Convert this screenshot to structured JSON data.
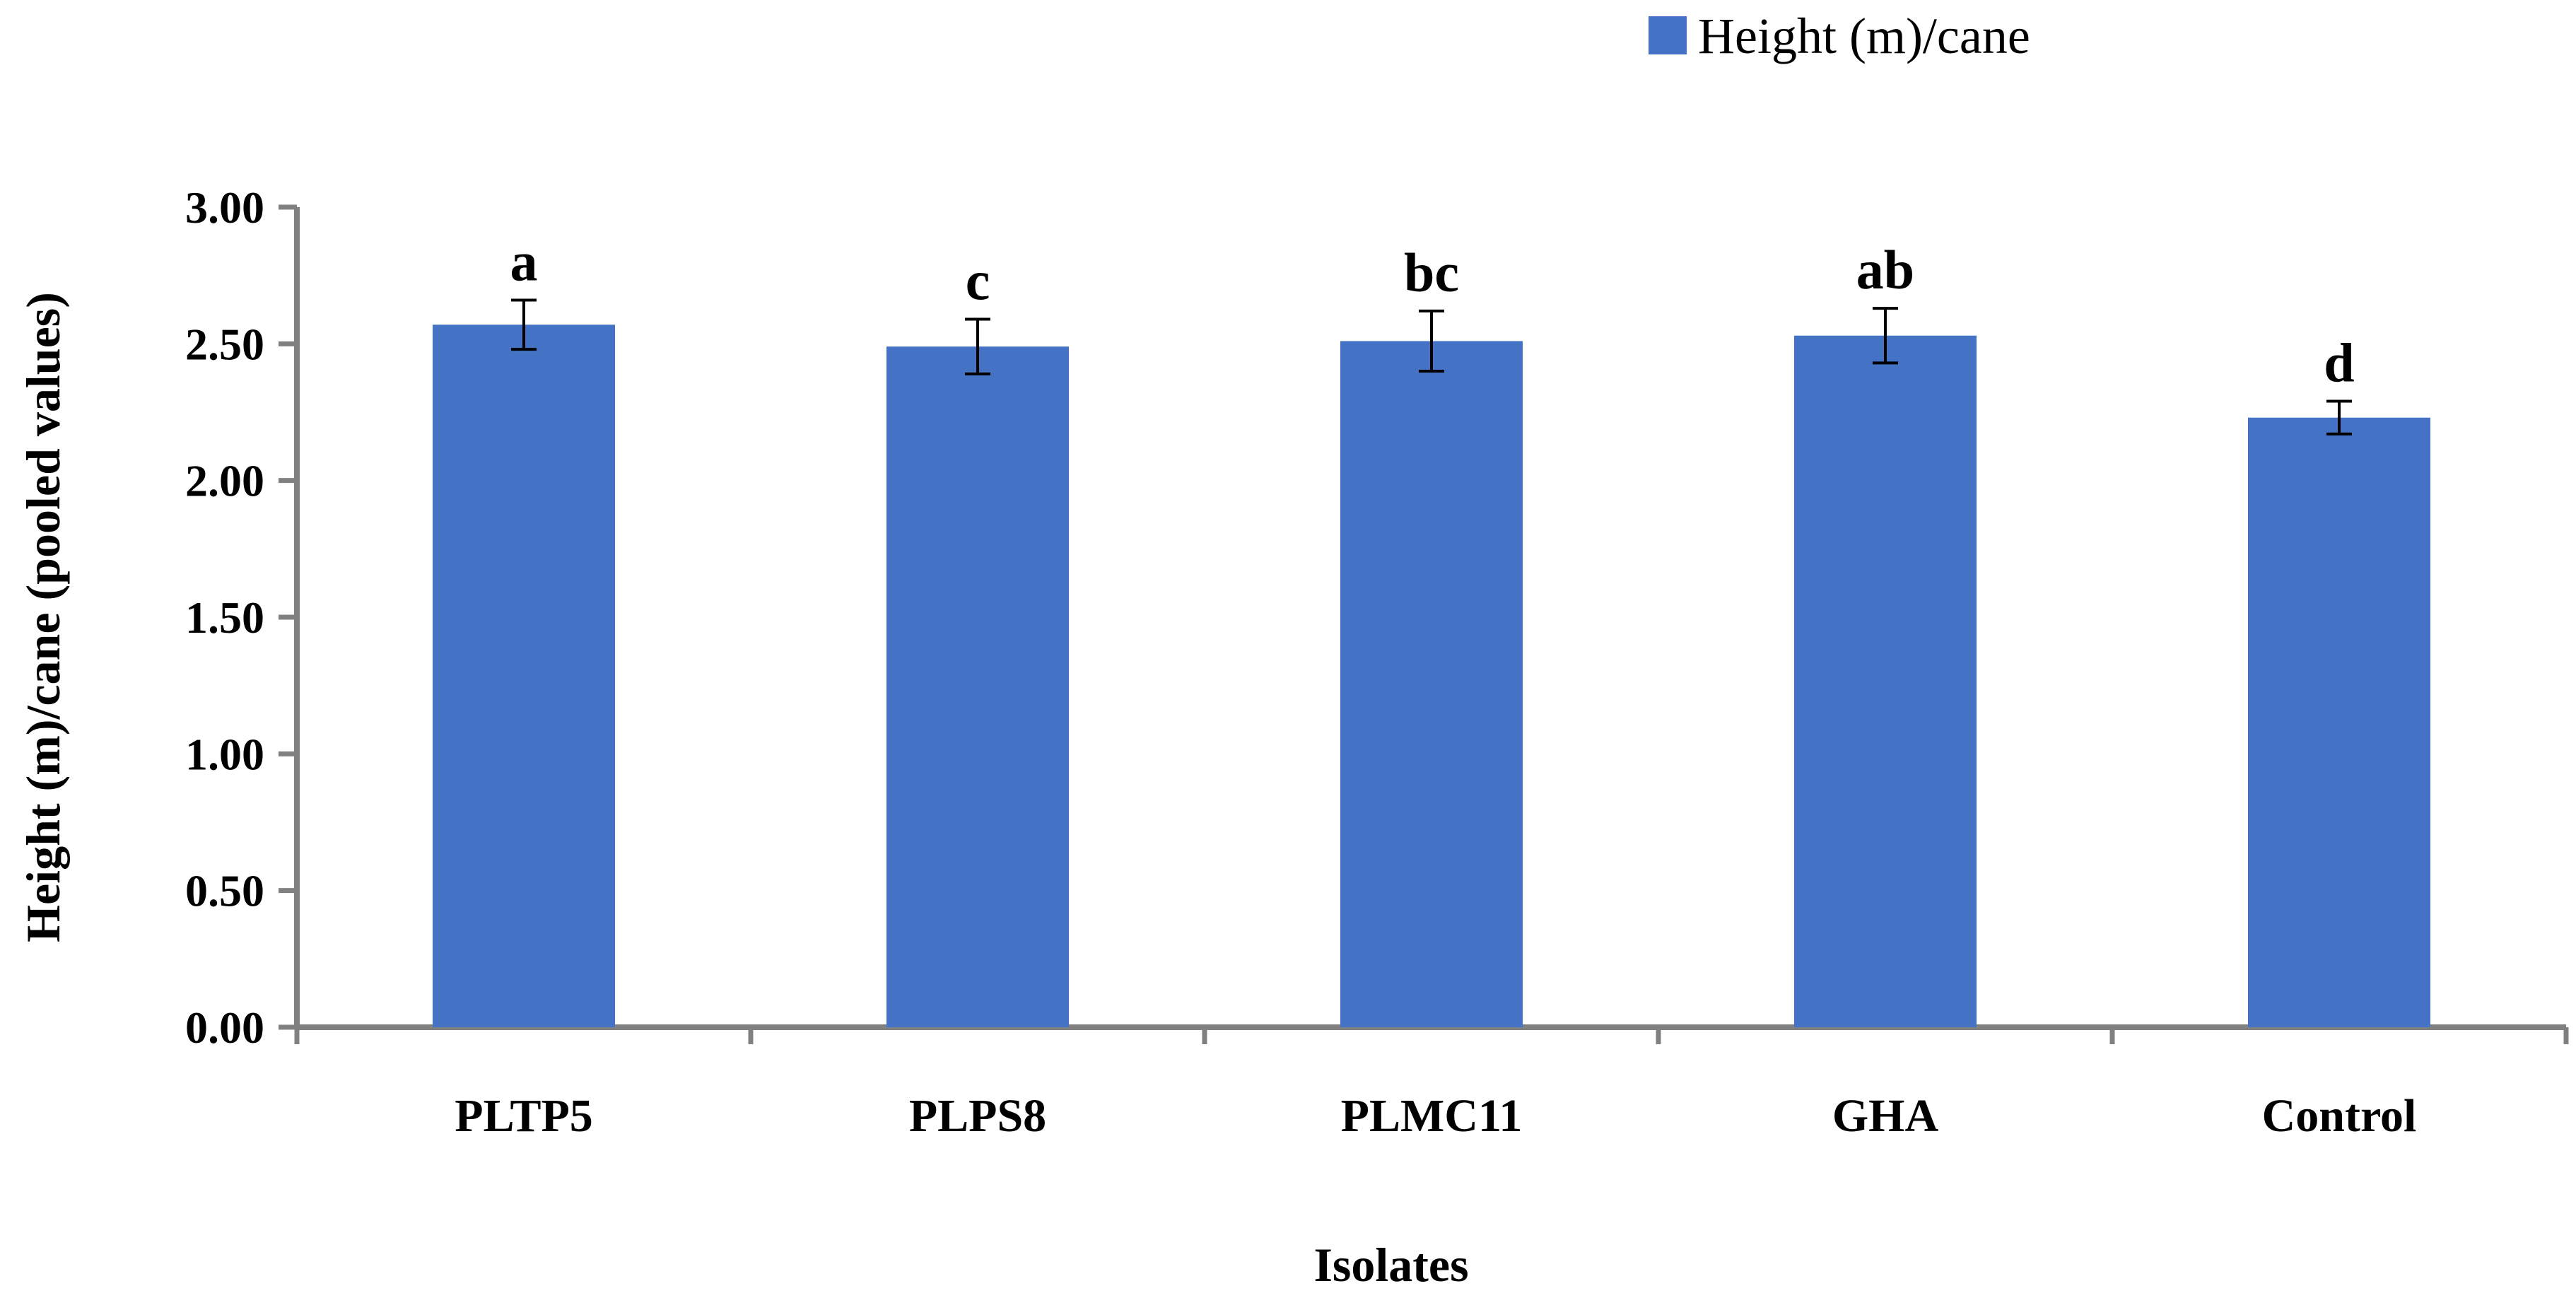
{
  "chart_data": {
    "type": "bar",
    "categories": [
      "PLTP5",
      "PLPS8",
      "PLMC11",
      "GHA",
      "Control"
    ],
    "series": [
      {
        "name": "Height (m)/cane",
        "color": "#4472C4",
        "values": [
          2.57,
          2.49,
          2.51,
          2.53,
          2.23
        ],
        "errors": [
          0.09,
          0.1,
          0.11,
          0.1,
          0.06
        ],
        "significance": [
          "a",
          "c",
          "bc",
          "ab",
          "d"
        ]
      }
    ],
    "xlabel": "Isolates",
    "ylabel": "Height (m)/cane (pooled values)",
    "ylim": [
      0,
      3
    ],
    "yticks": [
      0,
      0.5,
      1,
      1.5,
      2,
      2.5,
      3
    ],
    "ytick_labels": [
      "0.00",
      "0.50",
      "1.00",
      "1.50",
      "2.00",
      "2.50",
      "3.00"
    ],
    "legend": {
      "position": "top-right",
      "entries": [
        "Height (m)/cane"
      ]
    },
    "grid": false,
    "axis_color": "#808080"
  }
}
